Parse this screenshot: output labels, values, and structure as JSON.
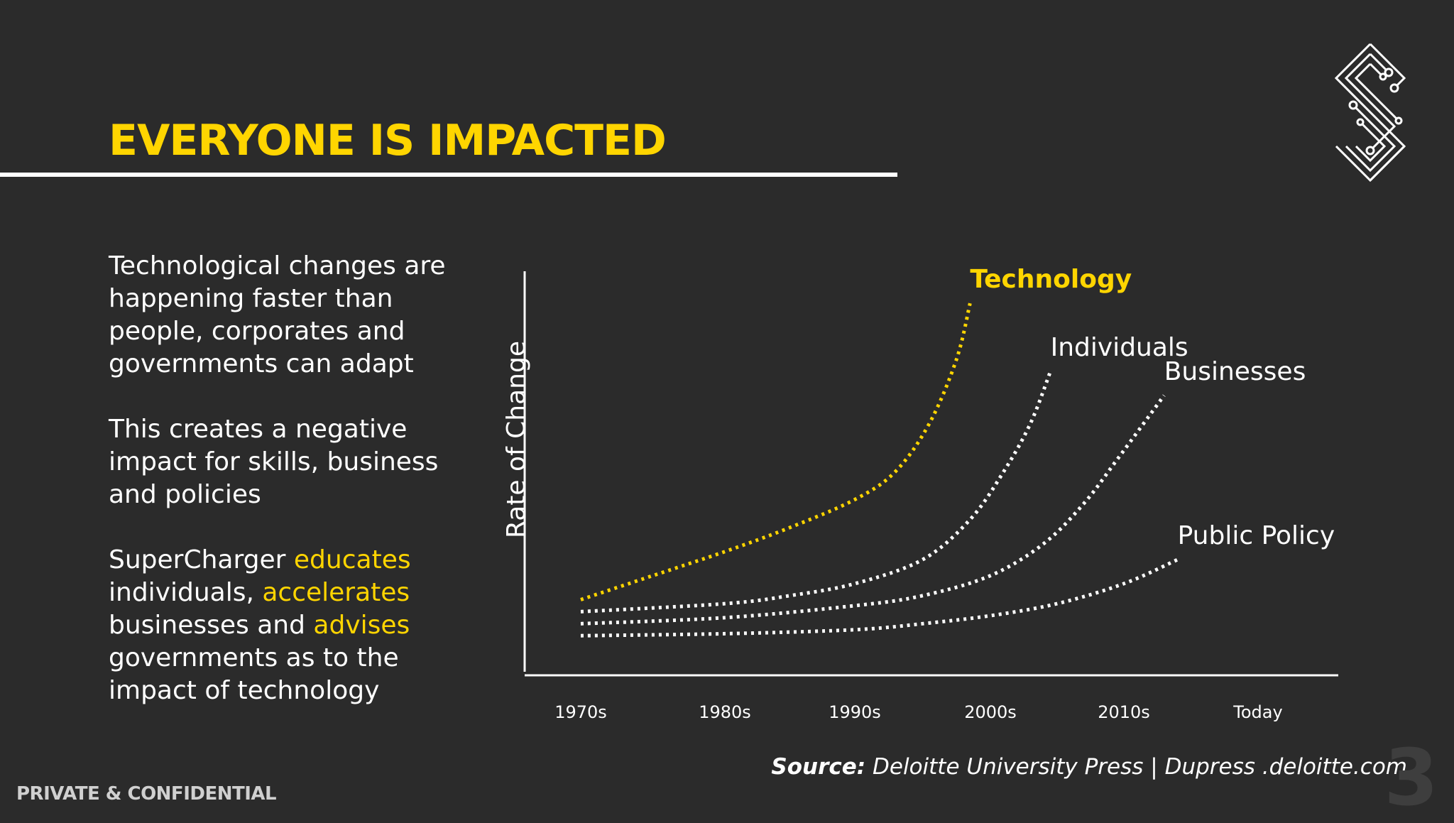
{
  "slide": {
    "title": "EVERYONE IS IMPACTED",
    "paragraph_1": "Technological changes are happening faster than people, corporates and governments can adapt",
    "paragraph_2": "This creates a negative impact for skills, business and policies",
    "paragraph_3": {
      "t1": "SuperCharger ",
      "h1": "educates",
      "t2": " individuals, ",
      "h2": "accelerates",
      "t3": " businesses and ",
      "h3": "advises",
      "t4": " governments as to the impact of technology"
    },
    "source_label": "Source:",
    "source_text": " Deloitte University Press | Dupress .deloitte.com",
    "footer": "PRIVATE & CONFIDENTIAL",
    "page_number": "3",
    "logo_icon": "circuit-s-logo-icon"
  },
  "colors": {
    "background": "#2b2b2b",
    "accent": "#ffd500",
    "text": "#ffffff"
  },
  "chart_data": {
    "type": "line",
    "ylabel": "Rate of Change",
    "xlabel": "",
    "categories": [
      "1970s",
      "1980s",
      "1990s",
      "2000s",
      "2010s",
      "Today"
    ],
    "line_style": "dotted",
    "series": [
      {
        "name": "Technology",
        "color": "#ffd500",
        "points": [
          [
            0,
            18
          ],
          [
            0.5,
            24
          ],
          [
            1,
            30
          ],
          [
            1.5,
            36
          ],
          [
            2,
            43
          ],
          [
            2.3,
            50
          ],
          [
            2.55,
            62
          ],
          [
            2.75,
            78
          ],
          [
            2.85,
            92
          ]
        ]
      },
      {
        "name": "Individuals",
        "color": "#ffffff",
        "points": [
          [
            0,
            15
          ],
          [
            1,
            17
          ],
          [
            1.5,
            19
          ],
          [
            2,
            22
          ],
          [
            2.5,
            28
          ],
          [
            2.85,
            38
          ],
          [
            3.1,
            50
          ],
          [
            3.3,
            62
          ],
          [
            3.45,
            75
          ]
        ]
      },
      {
        "name": "Businesses",
        "color": "#ffffff",
        "points": [
          [
            0,
            12
          ],
          [
            1,
            13.5
          ],
          [
            2,
            16.5
          ],
          [
            2.5,
            19
          ],
          [
            3,
            24
          ],
          [
            3.4,
            32
          ],
          [
            3.7,
            42
          ],
          [
            3.95,
            53
          ],
          [
            4.3,
            69
          ]
        ]
      },
      {
        "name": "Public Policy",
        "color": "#ffffff",
        "points": [
          [
            0,
            9
          ],
          [
            1,
            9.5
          ],
          [
            2,
            10.5
          ],
          [
            2.5,
            12
          ],
          [
            3,
            14
          ],
          [
            3.5,
            17
          ],
          [
            4,
            22
          ],
          [
            4.4,
            28
          ]
        ]
      }
    ]
  }
}
